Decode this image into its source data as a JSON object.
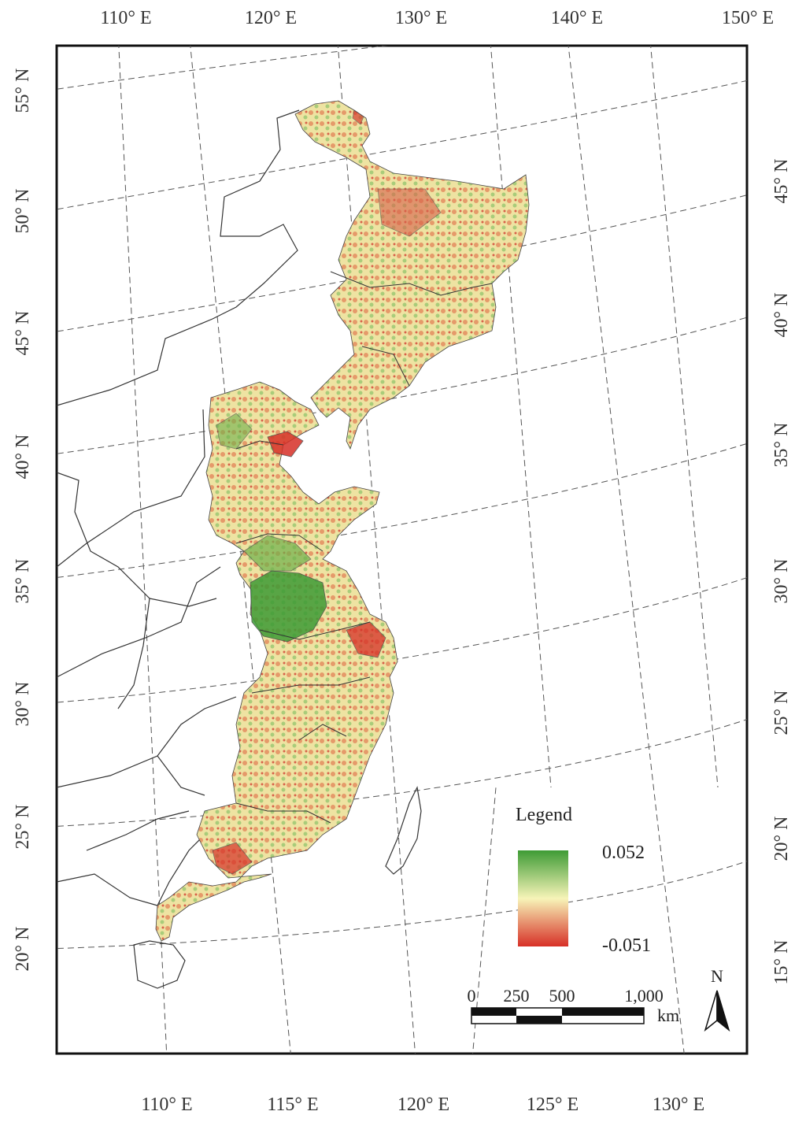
{
  "top_lon_labels": [
    "110° E",
    "120° E",
    "130° E",
    "140° E",
    "150° E"
  ],
  "bottom_lon_labels": [
    "110° E",
    "115° E",
    "120° E",
    "125° E",
    "130° E"
  ],
  "left_lat_labels": [
    "55° N",
    "50° N",
    "45° N",
    "40° N",
    "35° N",
    "30° N",
    "25° N",
    "20° N"
  ],
  "right_lat_labels": [
    "45° N",
    "40° N",
    "35° N",
    "30° N",
    "25° N",
    "20° N",
    "15° N"
  ],
  "legend": {
    "title": "Legend",
    "max_label": "0.052",
    "min_label": "-0.051",
    "max_value": 0.052,
    "min_value": -0.051,
    "colors": {
      "high": "#3e9b35",
      "mid": "#f7f4b8",
      "low": "#d73027"
    }
  },
  "scale_bar": {
    "ticks": [
      "0",
      "250",
      "500",
      "1,000"
    ],
    "unit": "km"
  },
  "north_arrow": {
    "label": "N",
    "icon": "north-arrow-icon"
  }
}
